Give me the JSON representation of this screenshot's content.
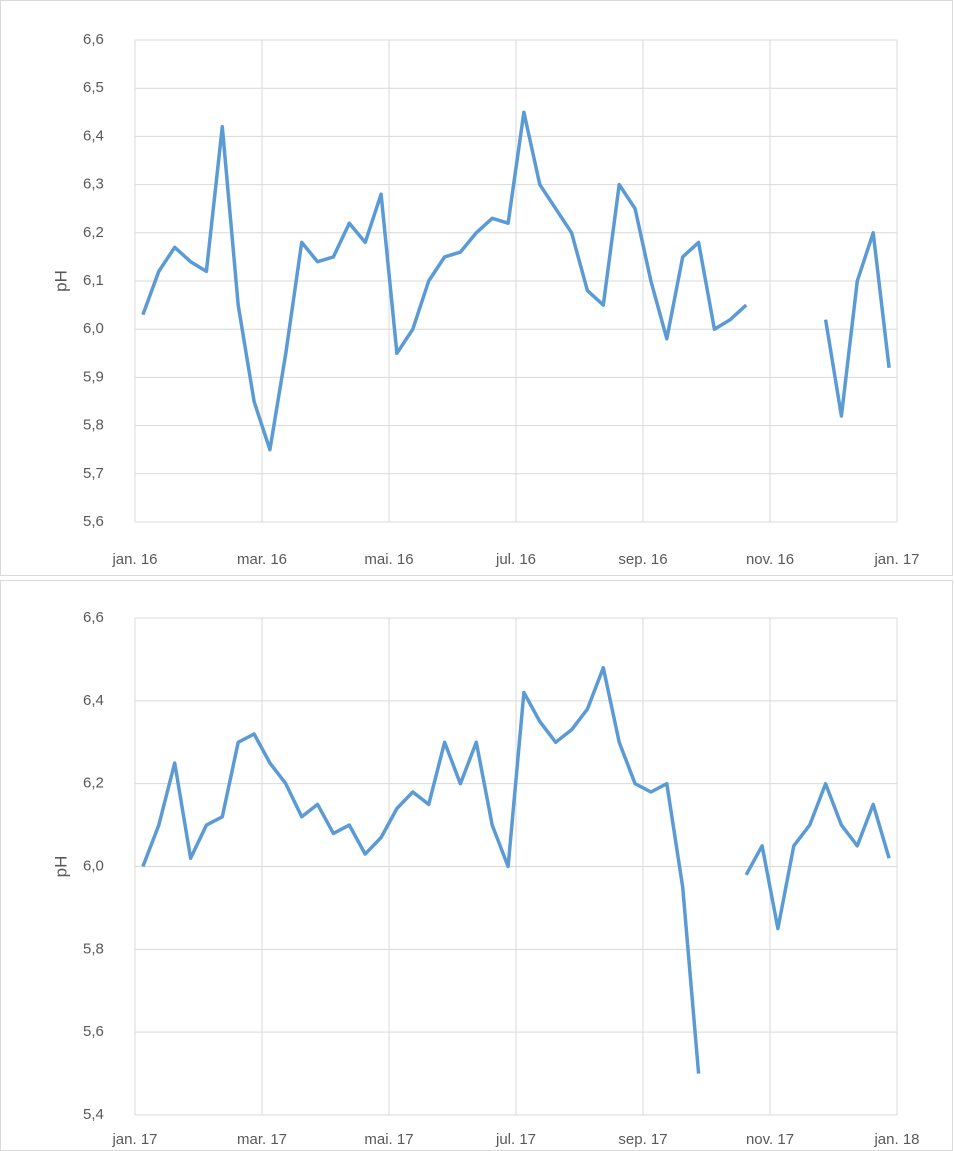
{
  "chart_data": [
    {
      "type": "line",
      "y_label": "pH",
      "x": [
        "2016-01",
        "2016-01",
        "2016-01",
        "2016-01",
        "2016-02",
        "2016-02",
        "2016-02",
        "2016-02",
        "2016-03",
        "2016-03",
        "2016-03",
        "2016-03",
        "2016-04",
        "2016-04",
        "2016-04",
        "2016-04",
        "2016-05",
        "2016-05",
        "2016-05",
        "2016-05",
        "2016-06",
        "2016-06",
        "2016-06",
        "2016-06",
        "2016-07",
        "2016-07",
        "2016-07",
        "2016-07",
        "2016-08",
        "2016-08",
        "2016-08",
        "2016-08",
        "2016-09",
        "2016-09",
        "2016-09",
        "2016-09",
        "2016-10",
        "2016-10",
        "2016-10",
        "2016-10",
        "2016-11",
        "2016-11",
        "2016-11",
        "2016-11",
        "2016-12",
        "2016-12",
        "2016-12",
        "2016-12"
      ],
      "series": [
        {
          "name": "pH",
          "color": "#5b9bd5",
          "values": [
            6.03,
            6.12,
            6.17,
            6.14,
            6.12,
            6.42,
            6.05,
            5.85,
            5.75,
            5.95,
            6.18,
            6.14,
            6.15,
            6.22,
            6.18,
            6.28,
            5.95,
            6.0,
            6.1,
            6.15,
            6.16,
            6.2,
            6.23,
            6.22,
            6.45,
            6.3,
            6.25,
            6.2,
            6.08,
            6.05,
            6.3,
            6.25,
            6.1,
            5.98,
            6.15,
            6.18,
            6.0,
            6.02,
            6.05,
            null,
            null,
            null,
            null,
            6.02,
            5.82,
            6.1,
            6.2,
            5.92
          ]
        }
      ],
      "xlim": [
        "2016-01",
        "2017-01"
      ],
      "xticks": [
        {
          "value": "2016-01",
          "label": "jan. 16"
        },
        {
          "value": "2016-03",
          "label": "mar. 16"
        },
        {
          "value": "2016-05",
          "label": "mai. 16"
        },
        {
          "value": "2016-07",
          "label": "jul. 16"
        },
        {
          "value": "2016-09",
          "label": "sep. 16"
        },
        {
          "value": "2016-11",
          "label": "nov. 16"
        },
        {
          "value": "2017-01",
          "label": "jan. 17"
        }
      ],
      "ylim": [
        5.6,
        6.6
      ],
      "yticks": [
        {
          "value": 5.6,
          "label": "5,6"
        },
        {
          "value": 5.7,
          "label": "5,7"
        },
        {
          "value": 5.8,
          "label": "5,8"
        },
        {
          "value": 5.9,
          "label": "5,9"
        },
        {
          "value": 6.0,
          "label": "6,0"
        },
        {
          "value": 6.1,
          "label": "6,1"
        },
        {
          "value": 6.2,
          "label": "6,2"
        },
        {
          "value": 6.3,
          "label": "6,3"
        },
        {
          "value": 6.4,
          "label": "6,4"
        },
        {
          "value": 6.5,
          "label": "6,5"
        },
        {
          "value": 6.6,
          "label": "6,6"
        }
      ],
      "grid": true
    },
    {
      "type": "line",
      "y_label": "pH",
      "x": [
        "2017-01",
        "2017-01",
        "2017-01",
        "2017-01",
        "2017-02",
        "2017-02",
        "2017-02",
        "2017-02",
        "2017-03",
        "2017-03",
        "2017-03",
        "2017-03",
        "2017-04",
        "2017-04",
        "2017-04",
        "2017-04",
        "2017-05",
        "2017-05",
        "2017-05",
        "2017-05",
        "2017-06",
        "2017-06",
        "2017-06",
        "2017-06",
        "2017-07",
        "2017-07",
        "2017-07",
        "2017-07",
        "2017-08",
        "2017-08",
        "2017-08",
        "2017-08",
        "2017-09",
        "2017-09",
        "2017-09",
        "2017-09",
        "2017-10",
        "2017-10",
        "2017-10",
        "2017-10",
        "2017-11",
        "2017-11",
        "2017-11",
        "2017-11",
        "2017-12",
        "2017-12",
        "2017-12",
        "2017-12"
      ],
      "series": [
        {
          "name": "pH",
          "color": "#5b9bd5",
          "values": [
            6.0,
            6.1,
            6.25,
            6.02,
            6.1,
            6.12,
            6.3,
            6.32,
            6.25,
            6.2,
            6.12,
            6.15,
            6.08,
            6.1,
            6.03,
            6.07,
            6.14,
            6.18,
            6.15,
            6.3,
            6.2,
            6.3,
            6.1,
            6.0,
            6.42,
            6.35,
            6.3,
            6.33,
            6.38,
            6.48,
            6.3,
            6.2,
            6.18,
            6.2,
            5.95,
            5.5,
            null,
            null,
            5.98,
            6.05,
            5.85,
            6.05,
            6.1,
            6.2,
            6.1,
            6.05,
            6.15,
            6.02
          ]
        }
      ],
      "xlim": [
        "2017-01",
        "2018-01"
      ],
      "xticks": [
        {
          "value": "2017-01",
          "label": "jan. 17"
        },
        {
          "value": "2017-03",
          "label": "mar. 17"
        },
        {
          "value": "2017-05",
          "label": "mai. 17"
        },
        {
          "value": "2017-07",
          "label": "jul. 17"
        },
        {
          "value": "2017-09",
          "label": "sep. 17"
        },
        {
          "value": "2017-11",
          "label": "nov. 17"
        },
        {
          "value": "2018-01",
          "label": "jan. 18"
        }
      ],
      "ylim": [
        5.4,
        6.6
      ],
      "yticks": [
        {
          "value": 5.4,
          "label": "5,4"
        },
        {
          "value": 5.6,
          "label": "5,6"
        },
        {
          "value": 5.8,
          "label": "5,8"
        },
        {
          "value": 6.0,
          "label": "6,0"
        },
        {
          "value": 6.2,
          "label": "6,2"
        },
        {
          "value": 6.4,
          "label": "6,4"
        },
        {
          "value": 6.6,
          "label": "6,6"
        }
      ],
      "grid": true
    }
  ]
}
